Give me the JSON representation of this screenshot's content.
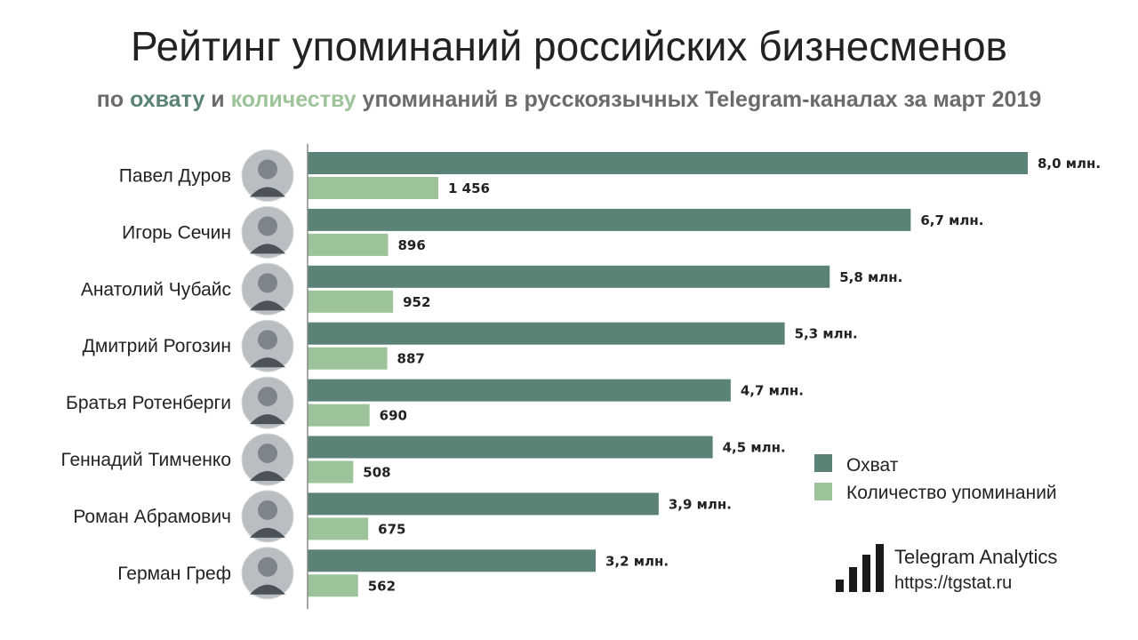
{
  "title": "Рейтинг упоминаний российских бизнесменов",
  "subtitle": {
    "part1": "по ",
    "reach_word": "охвату",
    "part2": " и ",
    "count_word": "количеству",
    "part3": " упоминаний в русскоязычных Telegram-каналах за март 2019"
  },
  "colors": {
    "reach": "#5a8277",
    "count": "#9cc39a",
    "reach_text": "#5a8277",
    "count_text": "#9cc39a",
    "axis": "#888888"
  },
  "chart_data": {
    "type": "bar",
    "orientation": "horizontal",
    "categories": [
      "Павел Дуров",
      "Игорь Сечин",
      "Анатолий Чубайс",
      "Дмитрий Рогозин",
      "Братья Ротенберги",
      "Геннадий Тимченко",
      "Роман Абрамович",
      "Герман Греф"
    ],
    "series": [
      {
        "name": "Охват",
        "unit": "млн.",
        "values": [
          8.0,
          6.7,
          5.8,
          5.3,
          4.7,
          4.5,
          3.9,
          3.2
        ],
        "labels": [
          "8,0 млн.",
          "6,7 млн.",
          "5,8 млн.",
          "5,3 млн.",
          "4,7 млн.",
          "4,5 млн.",
          "3,9 млн.",
          "3,2 млн."
        ]
      },
      {
        "name": "Количество упоминаний",
        "values": [
          1456,
          896,
          952,
          887,
          690,
          508,
          675,
          562
        ],
        "labels": [
          "1 456",
          "896",
          "952",
          "887",
          "690",
          "508",
          "675",
          "562"
        ]
      }
    ],
    "legend_position": "right",
    "grid": false
  },
  "brand": {
    "name": "Telegram Analytics",
    "url": "https://tgstat.ru",
    "logo_icon": "bar-chart-icon"
  }
}
